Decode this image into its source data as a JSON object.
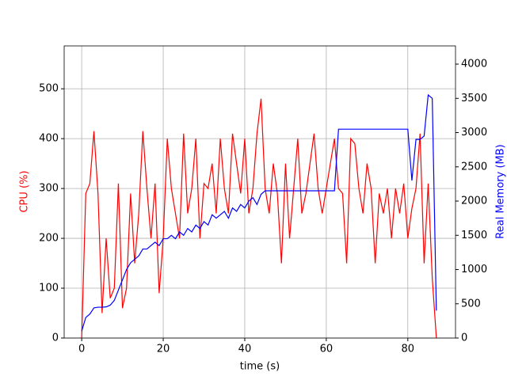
{
  "chart_data": {
    "type": "line",
    "xlabel": "time (s)",
    "ylabel": "CPU (%)",
    "y2label": "Real Memory (MB)",
    "ylabel_color": "#ff0000",
    "y2label_color": "#0000ff",
    "x": [
      0,
      1,
      2,
      3,
      4,
      5,
      6,
      7,
      8,
      9,
      10,
      11,
      12,
      13,
      14,
      15,
      16,
      17,
      18,
      19,
      20,
      21,
      22,
      23,
      24,
      25,
      26,
      27,
      28,
      29,
      30,
      31,
      32,
      33,
      34,
      35,
      36,
      37,
      38,
      39,
      40,
      41,
      42,
      43,
      44,
      45,
      46,
      47,
      48,
      49,
      50,
      51,
      52,
      53,
      54,
      55,
      56,
      57,
      58,
      59,
      60,
      61,
      62,
      63,
      64,
      65,
      66,
      67,
      68,
      69,
      70,
      71,
      72,
      73,
      74,
      75,
      76,
      77,
      78,
      79,
      80,
      81,
      82,
      83,
      84,
      85,
      86,
      87
    ],
    "series": [
      {
        "color": "#ff0000",
        "values": [
          0,
          290,
          310,
          415,
          290,
          50,
          200,
          80,
          100,
          310,
          60,
          100,
          290,
          150,
          250,
          415,
          300,
          200,
          310,
          90,
          200,
          400,
          300,
          250,
          200,
          410,
          250,
          300,
          400,
          200,
          310,
          300,
          350,
          250,
          400,
          300,
          250,
          410,
          350,
          290,
          400,
          250,
          300,
          410,
          480,
          300,
          250,
          350,
          290,
          150,
          350,
          200,
          300,
          400,
          250,
          290,
          350,
          410,
          300,
          250,
          300,
          350,
          400,
          300,
          290,
          150,
          400,
          390,
          300,
          250,
          350,
          300,
          150,
          290,
          250,
          300,
          200,
          300,
          250,
          310,
          200,
          260,
          300,
          410,
          150,
          310,
          120,
          0
        ]
      },
      {
        "color": "#0000ff",
        "axis": "y2",
        "values": [
          100,
          300,
          350,
          440,
          450,
          450,
          455,
          480,
          550,
          700,
          850,
          1000,
          1100,
          1150,
          1200,
          1300,
          1300,
          1350,
          1400,
          1350,
          1450,
          1450,
          1500,
          1450,
          1550,
          1500,
          1600,
          1550,
          1650,
          1600,
          1700,
          1650,
          1800,
          1750,
          1800,
          1850,
          1750,
          1900,
          1850,
          1950,
          1900,
          2000,
          2050,
          1950,
          2100,
          2150,
          2150,
          2150,
          2150,
          2150,
          2150,
          2150,
          2150,
          2150,
          2150,
          2150,
          2150,
          2150,
          2150,
          2150,
          2150,
          2150,
          2150,
          3050,
          3050,
          3050,
          3050,
          3050,
          3050,
          3050,
          3050,
          3050,
          3050,
          3050,
          3050,
          3050,
          3050,
          3050,
          3050,
          3050,
          3050,
          2300,
          2900,
          2900,
          2950,
          3550,
          3500,
          400
        ]
      }
    ],
    "xlim": [
      -4.3,
      91.7
    ],
    "xticks": [
      0,
      20,
      40,
      60,
      80
    ],
    "ylim": [
      0,
      586
    ],
    "yticks": [
      0,
      100,
      200,
      300,
      400,
      500
    ],
    "y2lim": [
      0,
      4266
    ],
    "y2ticks": [
      0,
      500,
      1000,
      1500,
      2000,
      2500,
      3000,
      3500,
      4000
    ],
    "grid": true
  }
}
